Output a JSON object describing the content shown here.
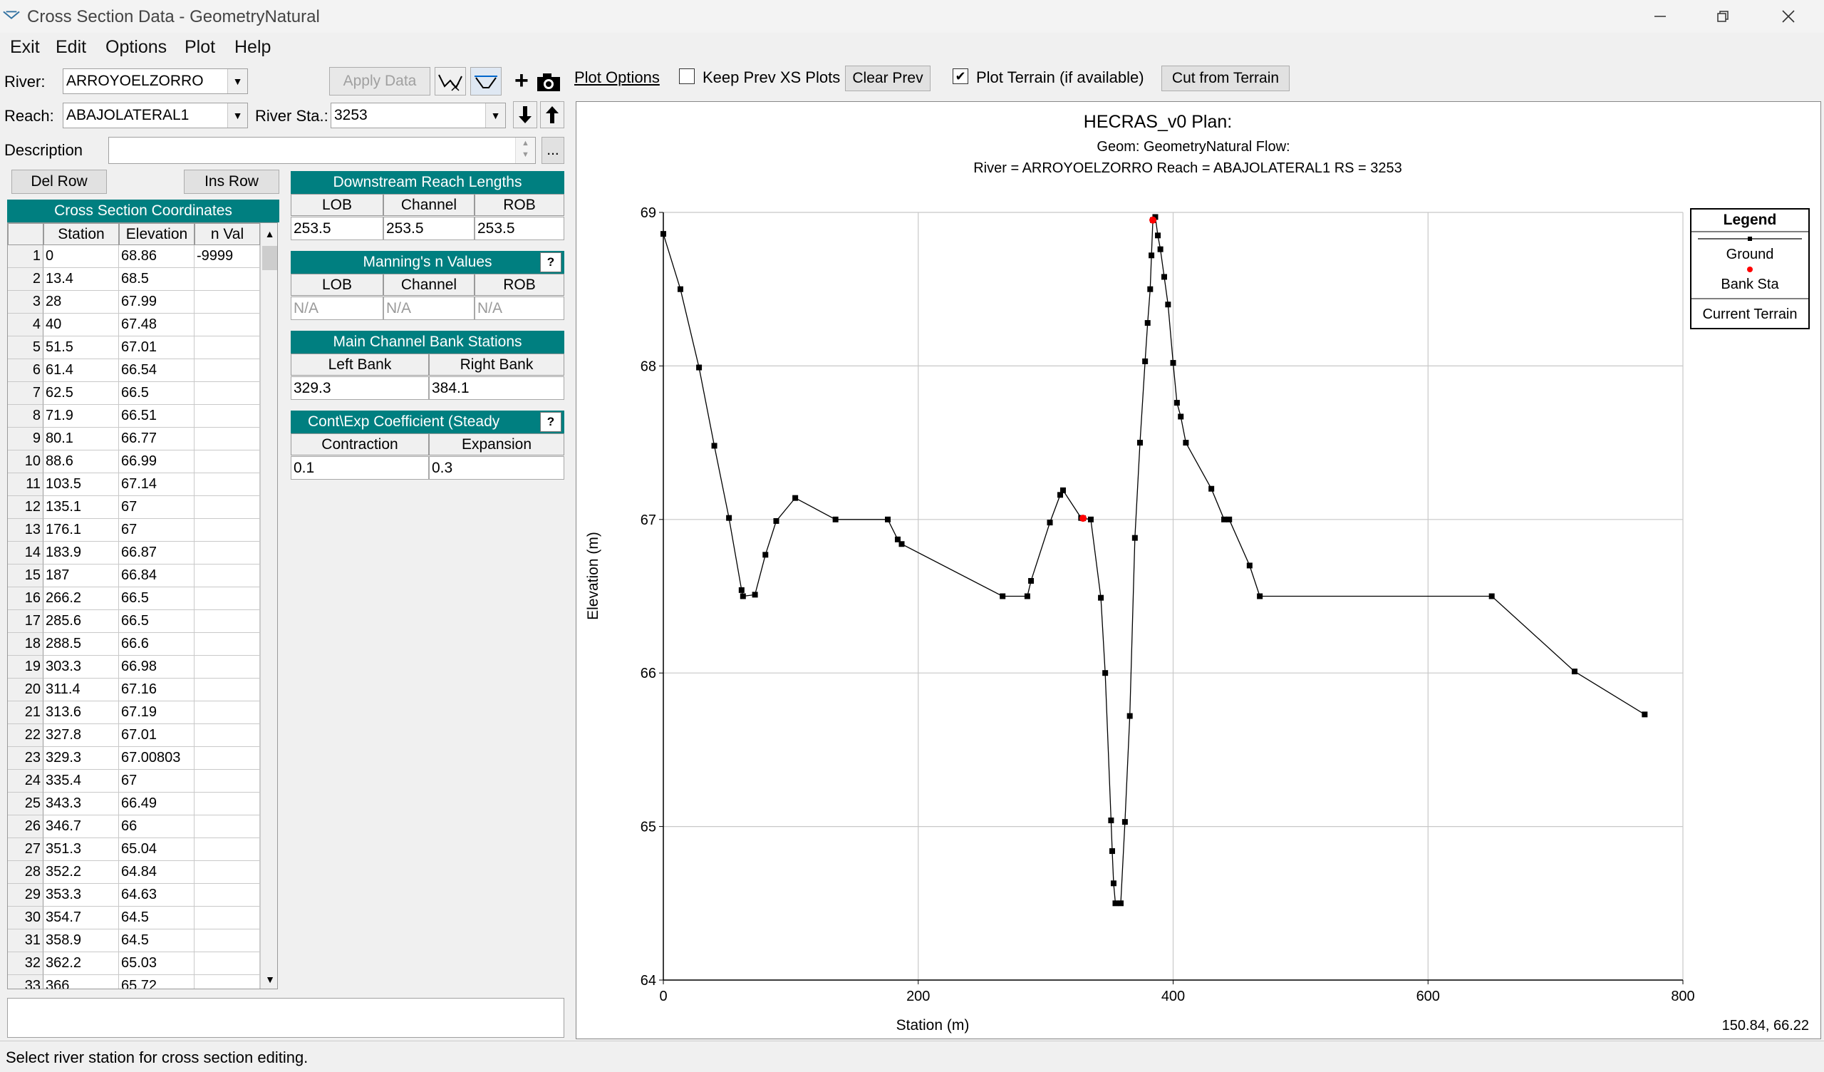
{
  "window": {
    "title": "Cross Section Data - GeometryNatural"
  },
  "menu": [
    "Exit",
    "Edit",
    "Options",
    "Plot",
    "Help"
  ],
  "river": {
    "label": "River:",
    "value": "ARROYOELZORRO"
  },
  "reach": {
    "label": "Reach:",
    "value": "ABAJOLATERAL1"
  },
  "river_sta": {
    "label": "River Sta.:",
    "value": "3253"
  },
  "apply_data": "Apply Data",
  "description": {
    "label": "Description",
    "value": "",
    "more": "..."
  },
  "del_row": "Del Row",
  "ins_row": "Ins Row",
  "plot_options": {
    "plot_options": "Plot Options",
    "keep_prev": "Keep Prev XS Plots",
    "keep_prev_checked": false,
    "clear_prev": "Clear Prev",
    "plot_terrain": "Plot Terrain (if available)",
    "plot_terrain_checked": true,
    "cut_from_terrain": "Cut from Terrain"
  },
  "coords": {
    "title": "Cross Section Coordinates",
    "headers": [
      "Station",
      "Elevation",
      "n Val"
    ],
    "rows": [
      [
        "1",
        "0",
        "68.86",
        "-9999"
      ],
      [
        "2",
        "13.4",
        "68.5",
        ""
      ],
      [
        "3",
        "28",
        "67.99",
        ""
      ],
      [
        "4",
        "40",
        "67.48",
        ""
      ],
      [
        "5",
        "51.5",
        "67.01",
        ""
      ],
      [
        "6",
        "61.4",
        "66.54",
        ""
      ],
      [
        "7",
        "62.5",
        "66.5",
        ""
      ],
      [
        "8",
        "71.9",
        "66.51",
        ""
      ],
      [
        "9",
        "80.1",
        "66.77",
        ""
      ],
      [
        "10",
        "88.6",
        "66.99",
        ""
      ],
      [
        "11",
        "103.5",
        "67.14",
        ""
      ],
      [
        "12",
        "135.1",
        "67",
        ""
      ],
      [
        "13",
        "176.1",
        "67",
        ""
      ],
      [
        "14",
        "183.9",
        "66.87",
        ""
      ],
      [
        "15",
        "187",
        "66.84",
        ""
      ],
      [
        "16",
        "266.2",
        "66.5",
        ""
      ],
      [
        "17",
        "285.6",
        "66.5",
        ""
      ],
      [
        "18",
        "288.5",
        "66.6",
        ""
      ],
      [
        "19",
        "303.3",
        "66.98",
        ""
      ],
      [
        "20",
        "311.4",
        "67.16",
        ""
      ],
      [
        "21",
        "313.6",
        "67.19",
        ""
      ],
      [
        "22",
        "327.8",
        "67.01",
        ""
      ],
      [
        "23",
        "329.3",
        "67.00803",
        ""
      ],
      [
        "24",
        "335.4",
        "67",
        ""
      ],
      [
        "25",
        "343.3",
        "66.49",
        ""
      ],
      [
        "26",
        "346.7",
        "66",
        ""
      ],
      [
        "27",
        "351.3",
        "65.04",
        ""
      ],
      [
        "28",
        "352.2",
        "64.84",
        ""
      ],
      [
        "29",
        "353.3",
        "64.63",
        ""
      ],
      [
        "30",
        "354.7",
        "64.5",
        ""
      ],
      [
        "31",
        "358.9",
        "64.5",
        ""
      ],
      [
        "32",
        "362.2",
        "65.03",
        ""
      ],
      [
        "33",
        "366",
        "65.72",
        ""
      ]
    ]
  },
  "reach_lengths": {
    "title": "Downstream Reach Lengths",
    "headers": [
      "LOB",
      "Channel",
      "ROB"
    ],
    "values": [
      "253.5",
      "253.5",
      "253.5"
    ]
  },
  "mannings": {
    "title": "Manning's n Values",
    "headers": [
      "LOB",
      "Channel",
      "ROB"
    ],
    "values": [
      "N/A",
      "N/A",
      "N/A"
    ]
  },
  "bank_stations": {
    "title": "Main Channel Bank Stations",
    "headers": [
      "Left Bank",
      "Right Bank"
    ],
    "values": [
      "329.3",
      "384.1"
    ]
  },
  "coefficients": {
    "title": "Cont\\Exp Coefficient (Steady",
    "headers": [
      "Contraction",
      "Expansion"
    ],
    "values": [
      "0.1",
      "0.3"
    ]
  },
  "chart_data": {
    "type": "line",
    "title": "HECRAS_v0       Plan:",
    "subtitle": "Geom: GeometryNatural      Flow:",
    "subtitle2": "River = ARROYOELZORRO     Reach = ABAJOLATERAL1        RS = 3253",
    "xlabel": "Station (m)",
    "ylabel": "Elevation (m)",
    "xlim": [
      0,
      800
    ],
    "ylim": [
      64,
      69
    ],
    "xticks": [
      0,
      200,
      400,
      600,
      800
    ],
    "yticks": [
      64,
      65,
      66,
      67,
      68,
      69
    ],
    "grid": true,
    "legend_position": "top-right",
    "legend": {
      "title": "Legend",
      "items": [
        "Ground",
        "Bank Sta",
        "Current Terrain"
      ]
    },
    "series": [
      {
        "name": "Ground",
        "color": "#000000",
        "x": [
          0,
          13.4,
          28,
          40,
          51.5,
          61.4,
          62.5,
          71.9,
          80.1,
          88.6,
          103.5,
          135.1,
          176.1,
          183.9,
          187,
          266.2,
          285.6,
          288.5,
          303.3,
          311.4,
          313.6,
          327.8,
          329.3,
          335.4,
          343.3,
          346.7,
          351.3,
          352.2,
          353.3,
          354.7,
          358.9,
          362.2,
          366,
          370,
          374,
          378,
          380,
          382,
          383,
          384.1,
          386,
          388,
          390,
          393,
          396,
          400,
          403,
          406,
          410,
          430,
          440,
          444,
          460,
          468,
          650,
          715,
          770
        ],
        "y": [
          68.86,
          68.5,
          67.99,
          67.48,
          67.01,
          66.54,
          66.5,
          66.51,
          66.77,
          66.99,
          67.14,
          67,
          67,
          66.87,
          66.84,
          66.5,
          66.5,
          66.6,
          66.98,
          67.16,
          67.19,
          67.01,
          67.00803,
          67,
          66.49,
          66,
          65.04,
          64.84,
          64.63,
          64.5,
          64.5,
          65.03,
          65.72,
          66.88,
          67.5,
          68.03,
          68.28,
          68.5,
          68.72,
          68.95,
          68.97,
          68.85,
          68.76,
          68.58,
          68.4,
          68.02,
          67.76,
          67.67,
          67.5,
          67.2,
          67.0,
          67.0,
          66.7,
          66.5,
          66.5,
          66.01,
          65.73
        ]
      }
    ],
    "bank_stations": [
      {
        "x": 329.3,
        "y": 67.00803
      },
      {
        "x": 384.1,
        "y": 68.95
      }
    ],
    "bank_color": "#ff0000"
  },
  "cursor_coords": "150.84, 66.22",
  "status": "Select river station for cross section editing."
}
